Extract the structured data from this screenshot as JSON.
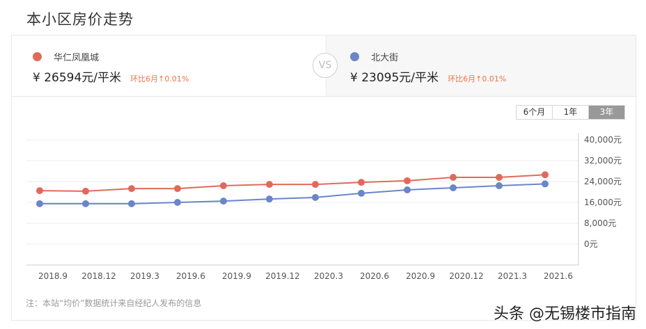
{
  "page_title": "本小区房价走势",
  "compare": {
    "vs_label": "VS",
    "left": {
      "name": "华仁凤凰城",
      "color": "#e06a5a",
      "price": "¥ 26594元/平米",
      "change": "环比6月↑0.01%"
    },
    "right": {
      "name": "北大街",
      "color": "#6a85c8",
      "price": "¥ 23095元/平米",
      "change": "环比6月↑0.01%"
    },
    "change_color": "#e8754b"
  },
  "range_tabs": [
    {
      "label": "6个月",
      "active": false
    },
    {
      "label": "1年",
      "active": false
    },
    {
      "label": "3年",
      "active": true
    }
  ],
  "note": "注：本站“均价”数据统计来自经纪人发布的信息",
  "watermark": "头条 @无锡楼市指南",
  "chart_data": {
    "type": "line",
    "title": "",
    "xlabel": "",
    "ylabel": "",
    "categories": [
      "2018.9",
      "2018.12",
      "2019.3",
      "2019.6",
      "2019.9",
      "2019.12",
      "2020.3",
      "2020.6",
      "2020.9",
      "2020.12",
      "2021.3",
      "2021.6"
    ],
    "y_ticks": [
      "0元",
      "8,000元",
      "16,000元",
      "24,000元",
      "32,000元",
      "40,000元"
    ],
    "ylim": [
      0,
      40000
    ],
    "y_axis_position": "right",
    "grid": true,
    "legend_position": "top (comparison header)",
    "series": [
      {
        "name": "华仁凤凰城",
        "color": "#e06a5a",
        "values": [
          20500,
          20300,
          21300,
          21300,
          22400,
          22900,
          22900,
          23700,
          24300,
          25600,
          25600,
          26594
        ]
      },
      {
        "name": "北大街",
        "color": "#6a85c8",
        "values": [
          15500,
          15500,
          15500,
          16000,
          16500,
          17300,
          17900,
          19500,
          20800,
          21600,
          22400,
          23095
        ]
      }
    ]
  }
}
